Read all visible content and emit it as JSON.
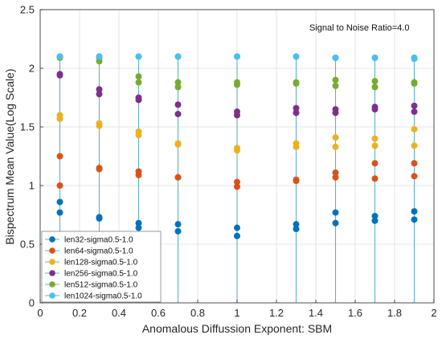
{
  "chart_data": {
    "type": "scatter",
    "title": "",
    "annotation": "Signal to Noise Ratio=4.0",
    "xlabel": "Anomalous Diffussion Exponent: SBM",
    "ylabel": "Bispectrum Mean Value(Log Scale)",
    "xlim": [
      0,
      2
    ],
    "ylim": [
      0,
      2.5
    ],
    "xticks": [
      0,
      0.2,
      0.4,
      0.6,
      0.8,
      1,
      1.2,
      1.4,
      1.6,
      1.8,
      2
    ],
    "xtick_labels": [
      "0",
      "0.2",
      "0.4",
      "0.6",
      "0.8",
      "1",
      "1.2",
      "1.4",
      "1.6",
      "1.8",
      "2"
    ],
    "yticks": [
      0,
      0.5,
      1,
      1.5,
      2,
      2.5
    ],
    "ytick_labels": [
      "0",
      "0.5",
      "1",
      "1.5",
      "2",
      "2.5"
    ],
    "grid": true,
    "legend_position": "bottom-left",
    "stem_color": "#5fb3c6",
    "x": [
      0.1,
      0.3,
      0.5,
      0.7,
      1.0,
      1.3,
      1.5,
      1.7,
      1.9
    ],
    "series": [
      {
        "name": "len32-sigma0.5-1.0",
        "color": "#0072bd",
        "points": [
          [
            0.1,
            0.86
          ],
          [
            0.1,
            0.77
          ],
          [
            0.3,
            0.73
          ],
          [
            0.3,
            0.72
          ],
          [
            0.5,
            0.68
          ],
          [
            0.5,
            0.64
          ],
          [
            0.7,
            0.67
          ],
          [
            0.7,
            0.61
          ],
          [
            1.0,
            0.64
          ],
          [
            1.0,
            0.57
          ],
          [
            1.3,
            0.67
          ],
          [
            1.3,
            0.63
          ],
          [
            1.5,
            0.77
          ],
          [
            1.5,
            0.68
          ],
          [
            1.7,
            0.74
          ],
          [
            1.7,
            0.7
          ],
          [
            1.9,
            0.78
          ],
          [
            1.9,
            0.71
          ]
        ]
      },
      {
        "name": "len64-sigma0.5-1.0",
        "color": "#d95319",
        "points": [
          [
            0.1,
            1.25
          ],
          [
            0.1,
            1.0
          ],
          [
            0.3,
            1.15
          ],
          [
            0.3,
            1.14
          ],
          [
            0.5,
            1.12
          ],
          [
            0.5,
            1.09
          ],
          [
            0.7,
            1.07
          ],
          [
            0.7,
            1.07
          ],
          [
            1.0,
            1.03
          ],
          [
            1.0,
            0.99
          ],
          [
            1.3,
            1.05
          ],
          [
            1.3,
            1.04
          ],
          [
            1.5,
            1.11
          ],
          [
            1.5,
            1.07
          ],
          [
            1.7,
            1.19
          ],
          [
            1.7,
            1.06
          ],
          [
            1.9,
            1.19
          ],
          [
            1.9,
            1.08
          ]
        ]
      },
      {
        "name": "len128-sigma0.5-1.0",
        "color": "#edb120",
        "points": [
          [
            0.1,
            1.6
          ],
          [
            0.1,
            1.57
          ],
          [
            0.3,
            1.53
          ],
          [
            0.3,
            1.51
          ],
          [
            0.5,
            1.46
          ],
          [
            0.5,
            1.43
          ],
          [
            0.7,
            1.36
          ],
          [
            0.7,
            1.35
          ],
          [
            1.0,
            1.32
          ],
          [
            1.0,
            1.3
          ],
          [
            1.3,
            1.36
          ],
          [
            1.3,
            1.33
          ],
          [
            1.5,
            1.41
          ],
          [
            1.5,
            1.33
          ],
          [
            1.7,
            1.4
          ],
          [
            1.7,
            1.34
          ],
          [
            1.9,
            1.48
          ],
          [
            1.9,
            1.34
          ]
        ]
      },
      {
        "name": "len256-sigma0.5-1.0",
        "color": "#7e2f8e",
        "points": [
          [
            0.1,
            1.95
          ],
          [
            0.1,
            1.94
          ],
          [
            0.3,
            1.82
          ],
          [
            0.3,
            1.78
          ],
          [
            0.5,
            1.75
          ],
          [
            0.5,
            1.73
          ],
          [
            0.7,
            1.69
          ],
          [
            0.7,
            1.61
          ],
          [
            1.0,
            1.63
          ],
          [
            1.0,
            1.6
          ],
          [
            1.3,
            1.66
          ],
          [
            1.3,
            1.62
          ],
          [
            1.5,
            1.65
          ],
          [
            1.5,
            1.62
          ],
          [
            1.7,
            1.67
          ],
          [
            1.7,
            1.65
          ],
          [
            1.9,
            1.68
          ],
          [
            1.9,
            1.63
          ]
        ]
      },
      {
        "name": "len512-sigma0.5-1.0",
        "color": "#77ac30",
        "points": [
          [
            0.1,
            2.1
          ],
          [
            0.1,
            2.09
          ],
          [
            0.3,
            2.09
          ],
          [
            0.3,
            2.06
          ],
          [
            0.5,
            1.93
          ],
          [
            0.5,
            1.88
          ],
          [
            0.7,
            1.88
          ],
          [
            0.7,
            1.84
          ],
          [
            1.0,
            1.88
          ],
          [
            1.0,
            1.86
          ],
          [
            1.3,
            1.88
          ],
          [
            1.3,
            1.87
          ],
          [
            1.5,
            1.9
          ],
          [
            1.5,
            1.85
          ],
          [
            1.7,
            1.89
          ],
          [
            1.7,
            1.84
          ],
          [
            1.9,
            1.88
          ],
          [
            1.9,
            1.87
          ]
        ]
      },
      {
        "name": "len1024-sigma0.5-1.0",
        "color": "#4dbeee",
        "points": [
          [
            0.1,
            2.1
          ],
          [
            0.1,
            2.1
          ],
          [
            0.3,
            2.1
          ],
          [
            0.3,
            2.1
          ],
          [
            0.5,
            2.1
          ],
          [
            0.5,
            2.1
          ],
          [
            0.7,
            2.1
          ],
          [
            0.7,
            2.1
          ],
          [
            1.0,
            2.1
          ],
          [
            1.0,
            2.1
          ],
          [
            1.3,
            2.1
          ],
          [
            1.3,
            2.1
          ],
          [
            1.5,
            2.09
          ],
          [
            1.5,
            2.09
          ],
          [
            1.7,
            2.09
          ],
          [
            1.7,
            2.09
          ],
          [
            1.9,
            2.09
          ],
          [
            1.9,
            2.08
          ]
        ]
      }
    ]
  }
}
